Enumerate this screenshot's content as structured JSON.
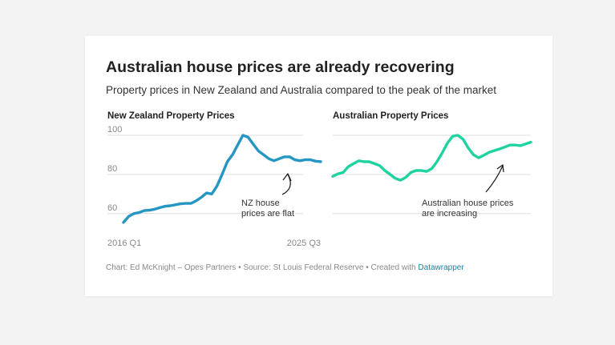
{
  "title": "Australian house prices are already recovering",
  "subtitle": "Property prices in New Zealand and Australia compared to the peak of the market",
  "footer": {
    "prefix": "Chart: Ed McKnight – Opes Partners • Source: St Louis Federal Reserve • Created with ",
    "link": "Datawrapper"
  },
  "colors": {
    "nz_line": "#2596c4",
    "au_line": "#1fd3a0",
    "grid": "#dddddd",
    "background": "#f3f3f3"
  },
  "chart_data": [
    {
      "type": "line",
      "title": "New Zealand Property Prices",
      "ylim": [
        55,
        100
      ],
      "y_ticks": [
        100,
        80,
        60
      ],
      "grid": true,
      "x_tick_labels": [
        "2016 Q1",
        "2025 Q3"
      ],
      "series": [
        {
          "values": [
            55.5,
            58.5,
            60,
            60.5,
            61.5,
            61.7,
            62.2,
            63,
            63.7,
            64,
            64.5,
            65,
            65.2,
            65.2,
            66.5,
            68.3,
            70.5,
            70,
            74,
            80,
            86.5,
            90,
            95,
            100,
            99,
            95.5,
            92,
            90,
            88,
            87,
            88,
            89,
            89,
            87.5,
            87,
            87.5,
            87.5,
            86.8,
            86.5
          ]
        }
      ],
      "annotation": {
        "lines": [
          "NZ house",
          "prices are flat"
        ]
      }
    },
    {
      "type": "line",
      "title": "Australian Property Prices",
      "ylim": [
        55,
        100
      ],
      "y_ticks": [
        100,
        80,
        60
      ],
      "grid": true,
      "x_tick_labels": [],
      "series": [
        {
          "values": [
            79,
            80.3,
            81,
            84,
            85.5,
            87,
            86.5,
            86.5,
            85.5,
            84.5,
            82,
            80,
            78,
            77,
            78.5,
            81,
            82,
            82,
            81.5,
            83,
            86.5,
            91,
            96,
            99.5,
            100,
            98,
            93.5,
            90,
            88.5,
            89.8,
            91.3,
            92.2,
            93,
            94,
            95,
            95,
            94.7,
            95.6,
            96.5
          ]
        }
      ],
      "annotation": {
        "lines": [
          "Australian house prices",
          "are increasing"
        ]
      }
    }
  ]
}
